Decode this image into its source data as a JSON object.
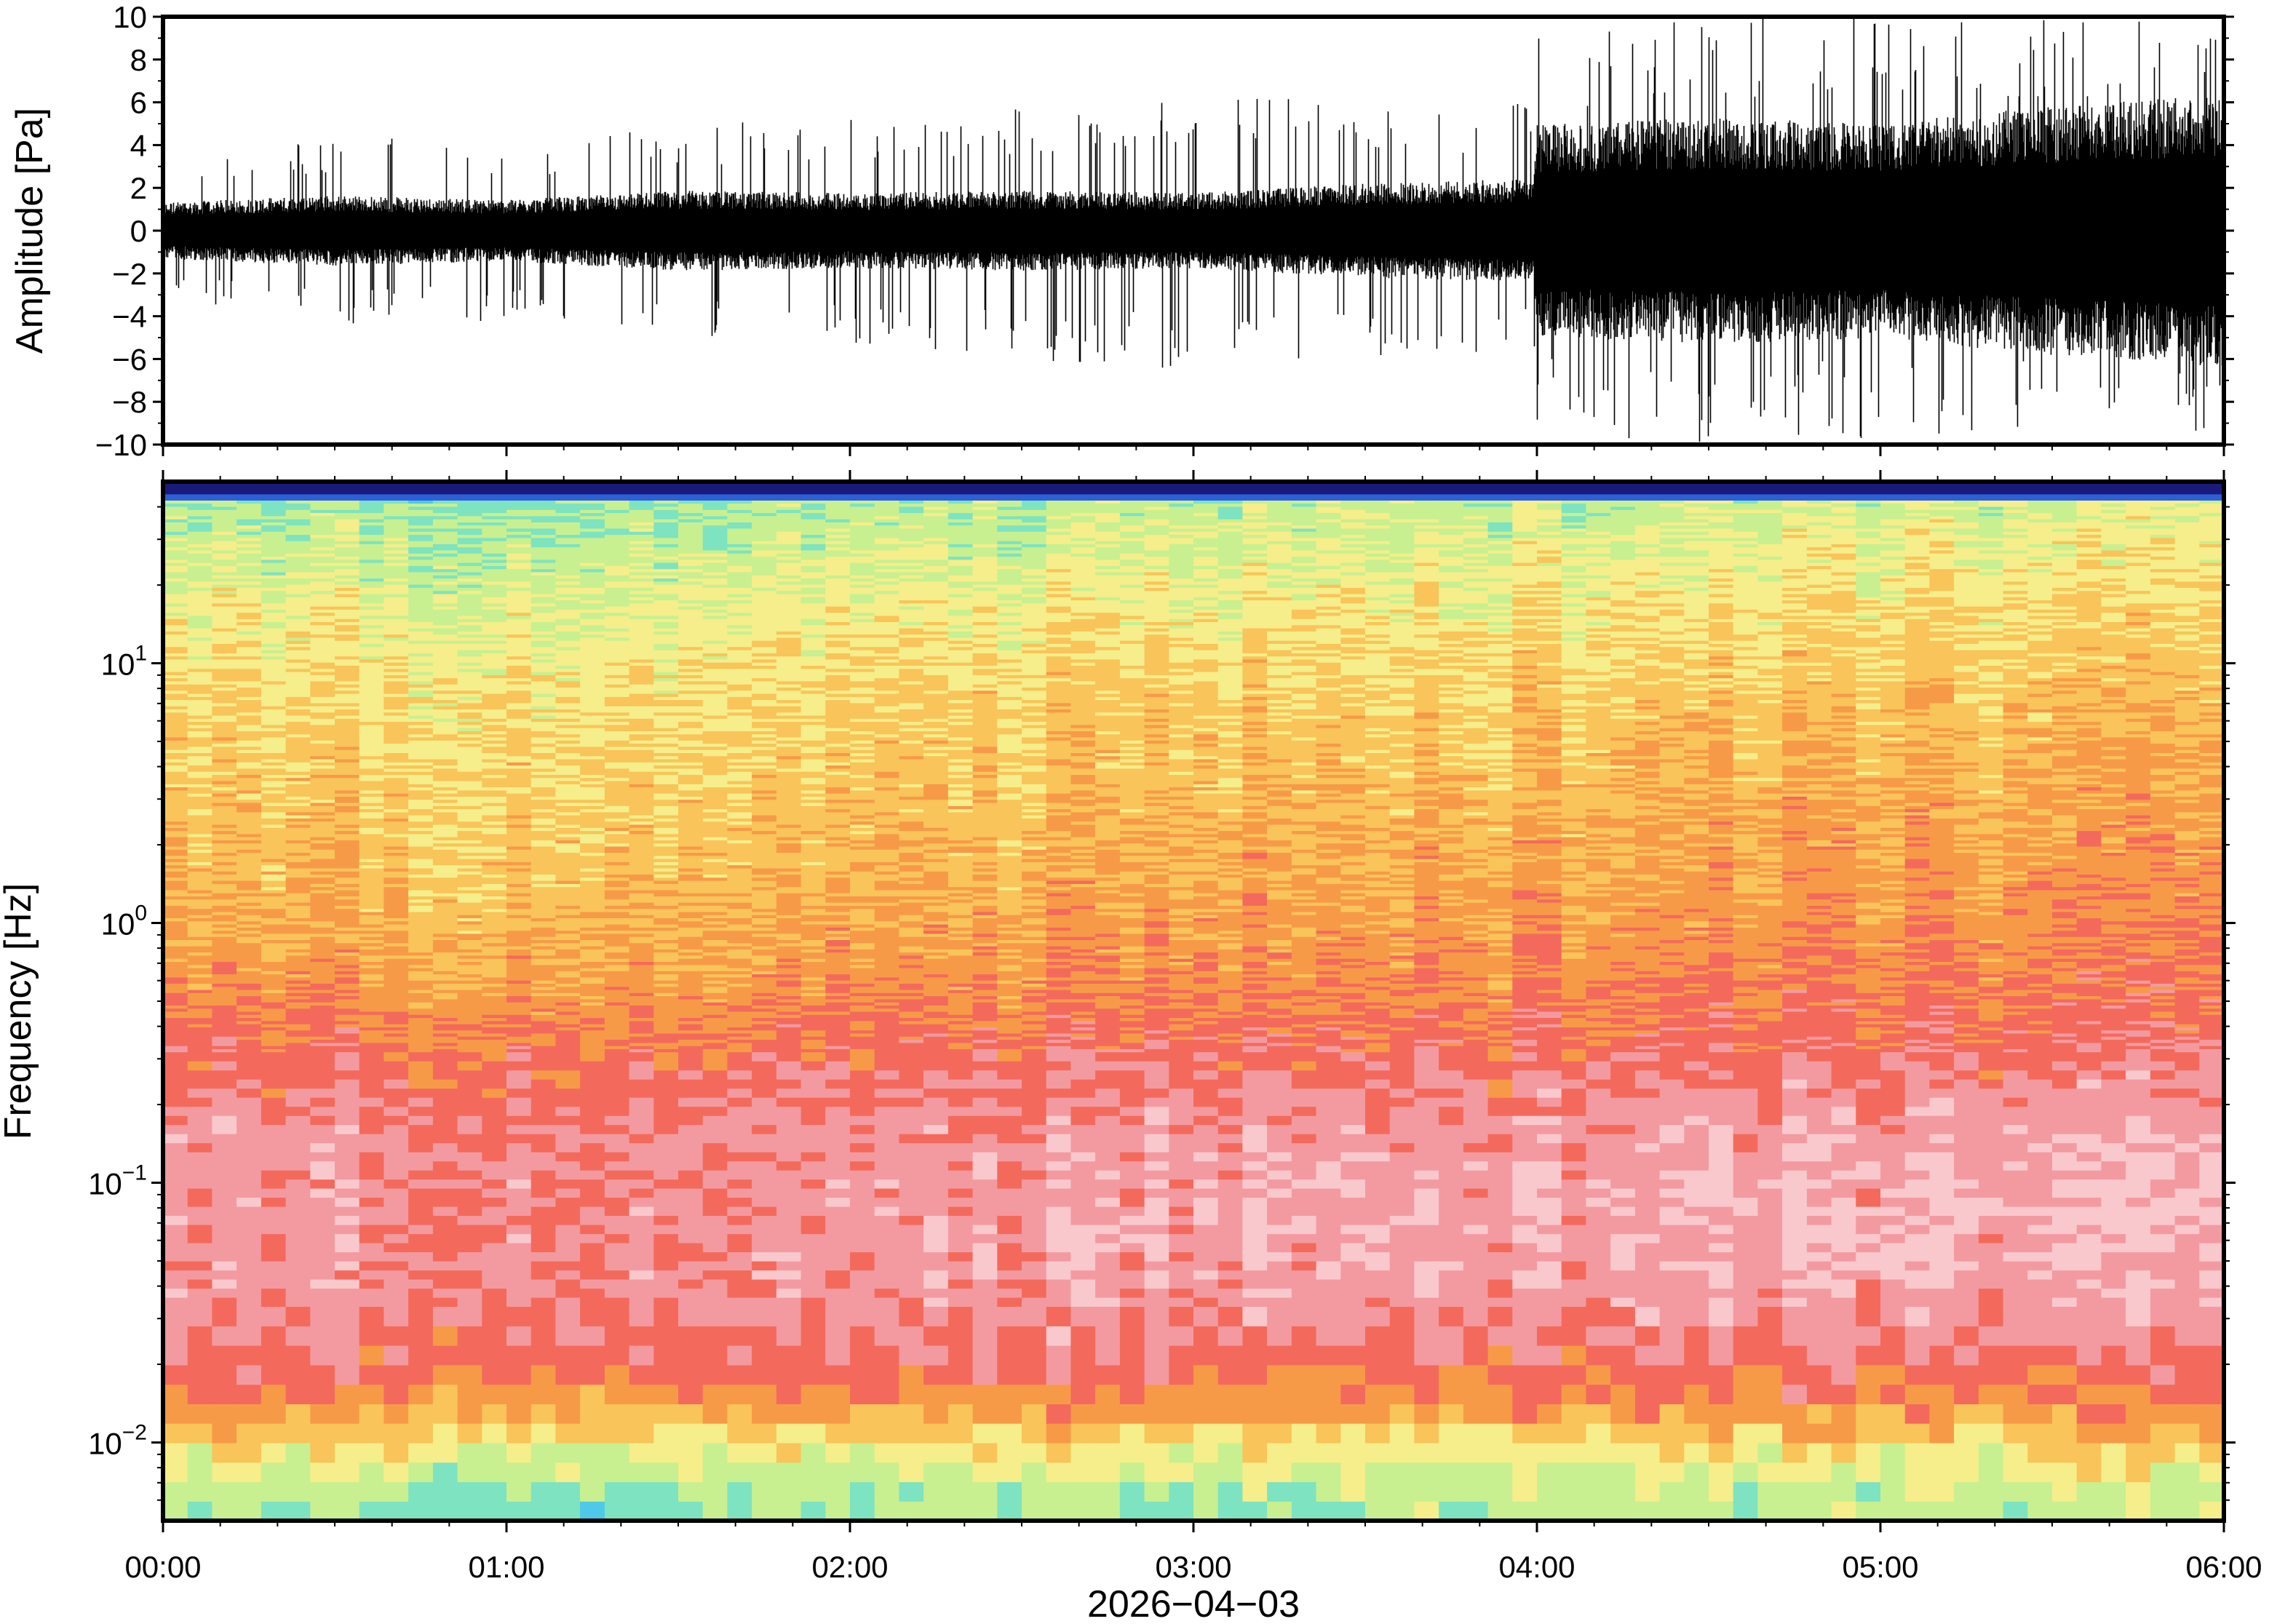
{
  "chart_data": [
    {
      "type": "line",
      "panel": "waveform",
      "ylabel": "Amplitude [Pa]",
      "ylim": [
        -10,
        10
      ],
      "yticks": [
        10,
        8,
        6,
        4,
        2,
        0,
        -2,
        -4,
        -6,
        -8,
        -10
      ],
      "ytick_labels": [
        "10",
        "8",
        "6",
        "4",
        "2",
        "0",
        "−2",
        "−4",
        "−6",
        "−8",
        "−10"
      ],
      "xlim_hours": [
        0,
        6
      ],
      "envelope_hours": [
        0,
        0.5,
        1,
        1.5,
        2,
        2.5,
        3,
        3.5,
        3.99,
        4.0,
        4.5,
        5,
        5.5,
        6
      ],
      "envelope_typical_pa": [
        1.2,
        1.5,
        1.3,
        1.7,
        1.6,
        1.7,
        1.6,
        2.0,
        2.2,
        4.5,
        4.8,
        4.6,
        5.3,
        5.8
      ],
      "envelope_peak_pa": [
        3,
        4.5,
        4.2,
        5,
        5.5,
        6,
        6.5,
        6,
        6,
        9.5,
        10,
        10,
        10,
        10
      ],
      "color": "#000000"
    },
    {
      "type": "heatmap",
      "panel": "spectrogram",
      "ylabel": "Frequency [Hz]",
      "yscale": "log",
      "ylim_hz": [
        0.005,
        50
      ],
      "yticks_hz": [
        10,
        1,
        0.1,
        0.01
      ],
      "ytick_labels": [
        {
          "base": "10",
          "exp": "1"
        },
        {
          "base": "10",
          "exp": "0"
        },
        {
          "base": "10",
          "exp": "−1"
        },
        {
          "base": "10",
          "exp": "−2"
        }
      ],
      "xlabel": "2026−04−03",
      "xticks": [
        "00:00",
        "01:00",
        "02:00",
        "03:00",
        "04:00",
        "05:00",
        "06:00"
      ],
      "colormap": [
        "#1a1a7a",
        "#2d5fd8",
        "#4ec9e8",
        "#7ee3c0",
        "#c8f090",
        "#f5ee8a",
        "#f9c45a",
        "#f79a48",
        "#f36a5c",
        "#f39aa0",
        "#f8c8cc"
      ],
      "profile_log10hz": [
        -2.3,
        -2.15,
        -2.0,
        -1.85,
        -1.7,
        -1.55,
        -1.35,
        -1.1,
        -0.85,
        -0.6,
        -0.4,
        -0.2,
        0.1,
        0.5,
        0.9,
        1.2,
        1.45,
        1.65
      ],
      "profile_level_start": [
        3.2,
        3.9,
        5.2,
        7.2,
        8.0,
        8.5,
        8.7,
        8.8,
        8.7,
        8.1,
        7.5,
        6.8,
        6.2,
        5.7,
        5.3,
        4.7,
        3.9,
        3.3
      ],
      "profile_level_end": [
        3.7,
        4.4,
        5.6,
        7.3,
        8.2,
        8.9,
        9.4,
        9.6,
        9.3,
        8.6,
        8.0,
        7.6,
        7.1,
        6.6,
        6.0,
        5.5,
        4.9,
        4.4
      ]
    }
  ]
}
